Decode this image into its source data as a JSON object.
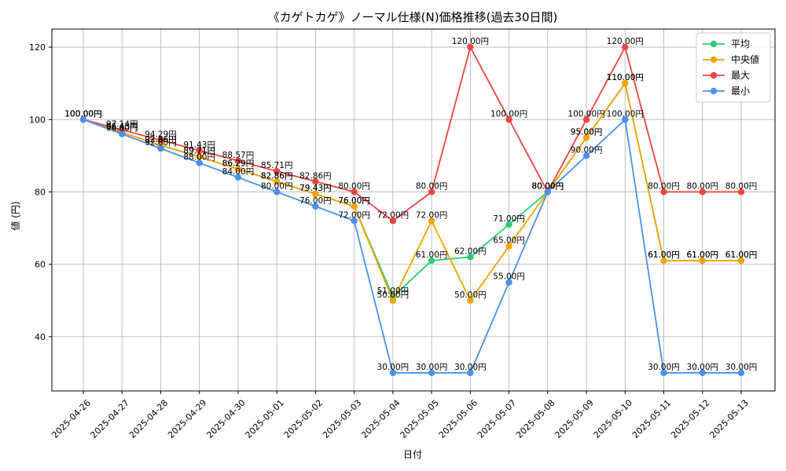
{
  "chart_data": {
    "type": "line",
    "title": "《カゲトカゲ》ノーマル仕様(N)価格推移(過去30日間)",
    "xlabel": "日付",
    "ylabel": "値 (円)",
    "value_suffix": "円",
    "categories": [
      "2025-04-26",
      "2025-04-27",
      "2025-04-28",
      "2025-04-29",
      "2025-04-30",
      "2025-05-01",
      "2025-05-02",
      "2025-05-03",
      "2025-05-04",
      "2025-05-05",
      "2025-05-06",
      "2025-05-07",
      "2025-05-08",
      "2025-05-09",
      "2025-05-10",
      "2025-05-11",
      "2025-05-12",
      "2025-05-13"
    ],
    "ylim": [
      25,
      125
    ],
    "yticks": [
      40,
      60,
      80,
      100,
      120
    ],
    "grid": true,
    "legend_position": "top-right",
    "series": [
      {
        "name": "平均",
        "color": "#2ecc71",
        "values": [
          100.0,
          96.43,
          92.86,
          89.71,
          86.29,
          82.86,
          79.43,
          76.0,
          51.0,
          61.0,
          62.0,
          71.0,
          80.0,
          95.0,
          110.0,
          61.0,
          61.0,
          61.0
        ]
      },
      {
        "name": "中央値",
        "color": "#f5a300",
        "values": [
          100.0,
          96.43,
          92.86,
          89.71,
          86.29,
          82.86,
          79.43,
          76.0,
          50.0,
          72.0,
          50.0,
          65.0,
          80.0,
          95.0,
          110.0,
          61.0,
          61.0,
          61.0
        ]
      },
      {
        "name": "最大",
        "color": "#ef4444",
        "values": [
          100.0,
          97.14,
          94.29,
          91.43,
          88.57,
          85.71,
          82.86,
          80.0,
          72.0,
          80.0,
          120.0,
          100.0,
          80.0,
          100.0,
          120.0,
          80.0,
          80.0,
          80.0
        ]
      },
      {
        "name": "最小",
        "color": "#4a90f0",
        "values": [
          100.0,
          96.0,
          92.0,
          88.0,
          84.0,
          80.0,
          76.0,
          72.0,
          30.0,
          30.0,
          30.0,
          55.0,
          80.0,
          90.0,
          100.0,
          30.0,
          30.0,
          30.0
        ]
      }
    ]
  }
}
